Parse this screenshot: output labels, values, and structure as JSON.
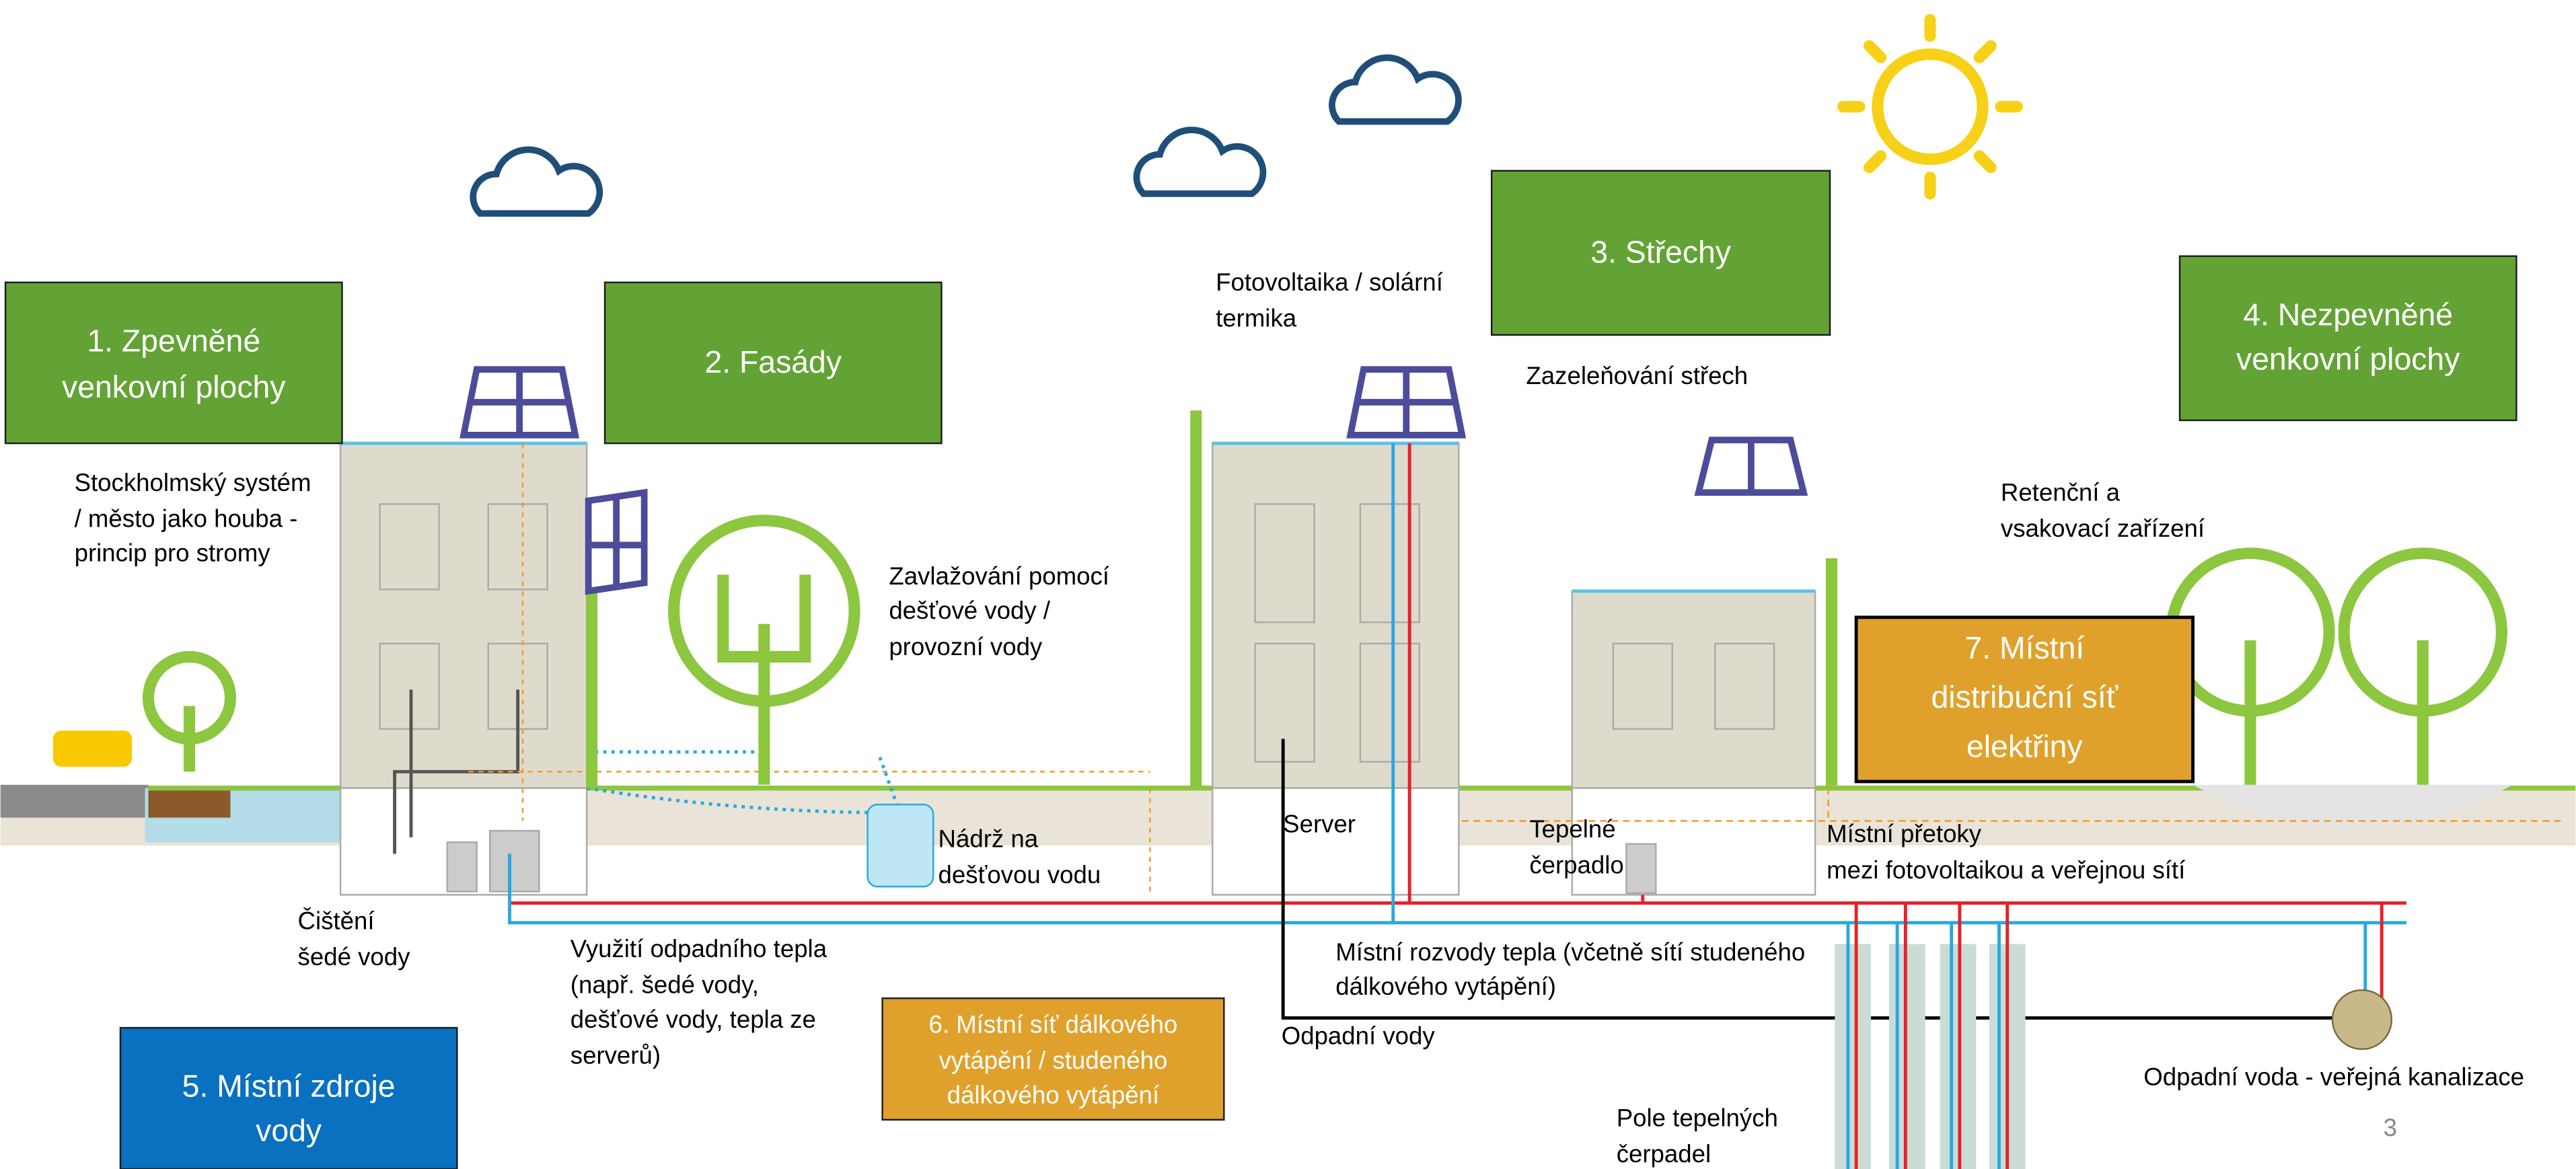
{
  "boxes": [
    {
      "lines": [
        "1.  Zpevněné",
        "venkovní plochy"
      ]
    },
    {
      "lines": [
        "2. Fasády"
      ]
    },
    {
      "lines": [
        "3. Střechy"
      ]
    },
    {
      "lines": [
        "4. Nezpevněné",
        "venkovní plochy"
      ]
    },
    {
      "lines": [
        "5. Místní zdroje",
        "vody"
      ]
    },
    {
      "lines": [
        "6. Místní síť  dálkového",
        "vytápění / studeného",
        "dálkového vytápění"
      ]
    },
    {
      "lines": [
        "7. Místní",
        "distribuční síť",
        "elektřiny"
      ]
    }
  ],
  "labels": [
    {
      "lines": [
        "Stockholmský systém",
        "/ město jako houba -",
        "princip pro stromy"
      ]
    },
    {
      "lines": [
        "Fotovoltaika / solární",
        "termika"
      ]
    },
    {
      "lines": [
        "Zazeleňování střech"
      ]
    },
    {
      "lines": [
        "Retenční a",
        "vsakovací zařízení"
      ]
    },
    {
      "lines": [
        "Zavlažování pomocí",
        "dešťové vody /",
        "provozní vody"
      ]
    },
    {
      "lines": [
        "Nádrž na",
        "dešťovou vodu"
      ]
    },
    {
      "lines": [
        "Server"
      ]
    },
    {
      "lines": [
        "Tepelné",
        "čerpadlo"
      ]
    },
    {
      "lines": [
        "Místní přetoky",
        "mezi fotovoltaikou a veřejnou sítí"
      ]
    },
    {
      "lines": [
        "Čištění",
        "šedé vody"
      ]
    },
    {
      "lines": [
        "Využití odpadního tepla",
        "(např. šedé vody,",
        "dešťové vody, tepla ze",
        "serverů)"
      ]
    },
    {
      "lines": [
        "Místní rozvody tepla (včetně sítí studeného",
        "dálkového vytápění)"
      ]
    },
    {
      "lines": [
        "Odpadní vody"
      ]
    },
    {
      "lines": [
        "Odpadní voda - veřejná kanalizace"
      ]
    },
    {
      "lines": [
        "Pole tepelných",
        "čerpadel"
      ]
    }
  ],
  "page_number": "3"
}
